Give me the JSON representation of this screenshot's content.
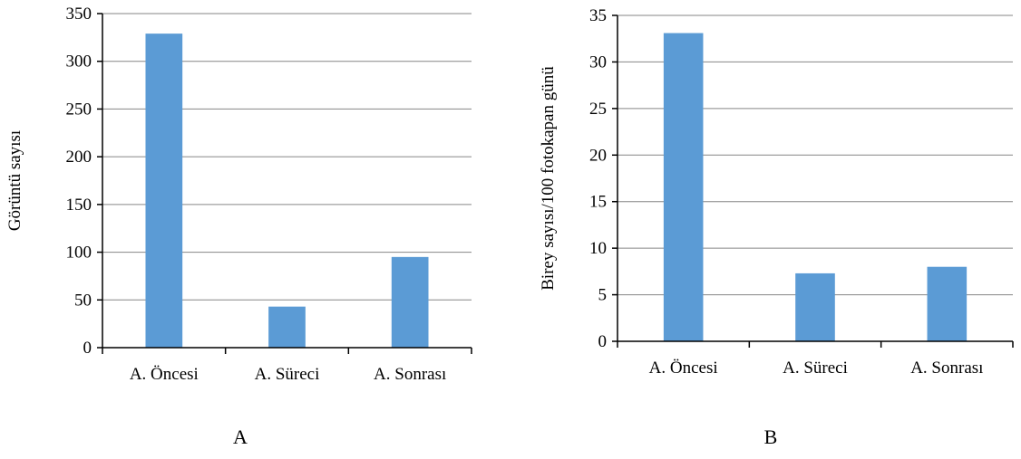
{
  "colors": {
    "bar": "#5b9bd5",
    "grid": "#868686",
    "axis": "#000000"
  },
  "chart_data": [
    {
      "type": "bar",
      "panel_label": "A",
      "xlabel": "",
      "ylabel": "Görüntü sayısı",
      "categories": [
        "A. Öncesi",
        "A. Süreci",
        "A. Sonrası"
      ],
      "values": [
        329,
        43,
        95
      ],
      "ylim": [
        0,
        350
      ],
      "yticks": [
        0,
        50,
        100,
        150,
        200,
        250,
        300,
        350
      ],
      "grid": true,
      "legend": "none"
    },
    {
      "type": "bar",
      "panel_label": "B",
      "xlabel": "",
      "ylabel": "Birey sayısı/100 fotokapan günü",
      "categories": [
        "A. Öncesi",
        "A. Süreci",
        "A. Sonrası"
      ],
      "values": [
        33.1,
        7.3,
        8.0
      ],
      "ylim": [
        0,
        35
      ],
      "yticks": [
        0,
        5,
        10,
        15,
        20,
        25,
        30,
        35
      ],
      "grid": true,
      "legend": "none"
    }
  ]
}
